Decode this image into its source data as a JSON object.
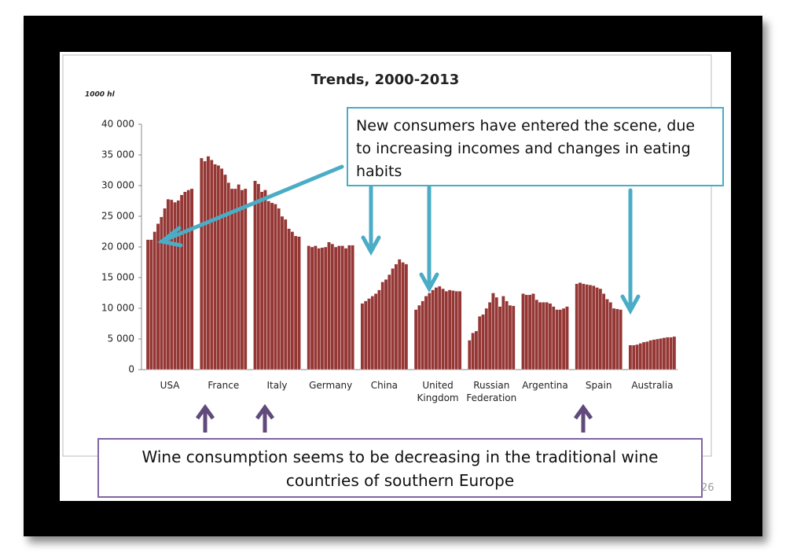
{
  "chart_data": {
    "type": "bar",
    "title": "Trends, 2000-2013",
    "y_unit": "1000 hl",
    "categories": [
      "USA",
      "France",
      "Italy",
      "Germany",
      "China",
      "United Kingdom",
      "Russian Federation",
      "Argentina",
      "Spain",
      "Australia"
    ],
    "values": [
      [
        21200,
        21200,
        22500,
        23800,
        24900,
        26300,
        27800,
        27700,
        27300,
        27600,
        28500,
        29000,
        29300,
        29500
      ],
      [
        34500,
        34000,
        34800,
        34200,
        33500,
        33300,
        32800,
        31800,
        30500,
        29500,
        29500,
        30200,
        29300,
        29500
      ],
      [
        30800,
        30300,
        29000,
        29300,
        27500,
        27200,
        27000,
        26300,
        25000,
        24500,
        23000,
        22500,
        21800,
        21700
      ],
      [
        20200,
        20000,
        20200,
        19800,
        19900,
        20000,
        20800,
        20500,
        20000,
        20200,
        20200,
        19800,
        20300,
        20300
      ],
      [
        10800,
        11200,
        11600,
        12000,
        12400,
        13000,
        14300,
        14700,
        15500,
        16500,
        17200,
        18000,
        17500,
        17200
      ],
      [
        9800,
        10500,
        11200,
        12000,
        12500,
        13000,
        13400,
        13600,
        13200,
        12800,
        13000,
        12900,
        12800,
        12800
      ],
      [
        4800,
        6000,
        6300,
        8700,
        9000,
        10000,
        11000,
        12500,
        11800,
        10300,
        12000,
        11200,
        10500,
        10400
      ],
      [
        12400,
        12200,
        12200,
        12400,
        11400,
        11000,
        11000,
        11000,
        10800,
        10300,
        9800,
        9800,
        10000,
        10300
      ],
      [
        14000,
        14200,
        14000,
        13900,
        13800,
        13700,
        13400,
        13200,
        12400,
        11500,
        11000,
        10000,
        9900,
        9800
      ],
      [
        4000,
        4000,
        4100,
        4300,
        4500,
        4600,
        4800,
        4900,
        5000,
        5100,
        5200,
        5300,
        5300,
        5400
      ]
    ],
    "color": "#953735",
    "ylim": [
      0,
      40000
    ],
    "yticks": [
      0,
      {
        "value": 5000,
        "label": "5 000"
      },
      {
        "value": 10000,
        "label": "10 000"
      },
      {
        "value": 15000,
        "label": "15 000"
      },
      {
        "value": 20000,
        "label": "20 000"
      },
      {
        "value": 25000,
        "label": "25 000"
      },
      {
        "value": 30000,
        "label": "30 000"
      },
      {
        "value": 35000,
        "label": "35 000"
      },
      {
        "value": 40000,
        "label": "40 000"
      }
    ],
    "grid": false,
    "annotations": [
      "New consumers have entered the scene, due to increasing incomes and changes in eating habits",
      "Wine consumption seems to be decreasing in the traditional wine countries of southern Europe"
    ]
  },
  "page_number": "26"
}
